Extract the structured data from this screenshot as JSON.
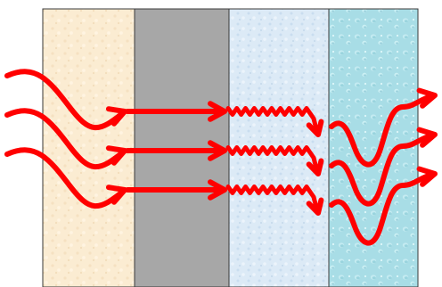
{
  "diagram": {
    "panels": [
      {
        "id": "panel-1",
        "texture": "sand-speckle",
        "fill": "#fbecd2"
      },
      {
        "id": "panel-2",
        "texture": "solid-gray",
        "fill": "#a7a7a7"
      },
      {
        "id": "panel-3",
        "texture": "pale-ice-speckle",
        "fill": "#dceaf6"
      },
      {
        "id": "panel-4",
        "texture": "water-droplets",
        "fill": "#a8dde6"
      }
    ],
    "arrow_color": "#ff0000",
    "border_color": "#3a3a3a",
    "arrows": [
      {
        "id": "arrow-top",
        "segments": [
          "curved-entry",
          "straight",
          "fine-zigzag",
          "wide-wave"
        ]
      },
      {
        "id": "arrow-middle",
        "segments": [
          "curved-entry",
          "straight",
          "fine-zigzag",
          "wide-wave"
        ]
      },
      {
        "id": "arrow-bottom",
        "segments": [
          "curved-entry",
          "straight",
          "fine-zigzag",
          "wide-wave"
        ]
      }
    ]
  }
}
